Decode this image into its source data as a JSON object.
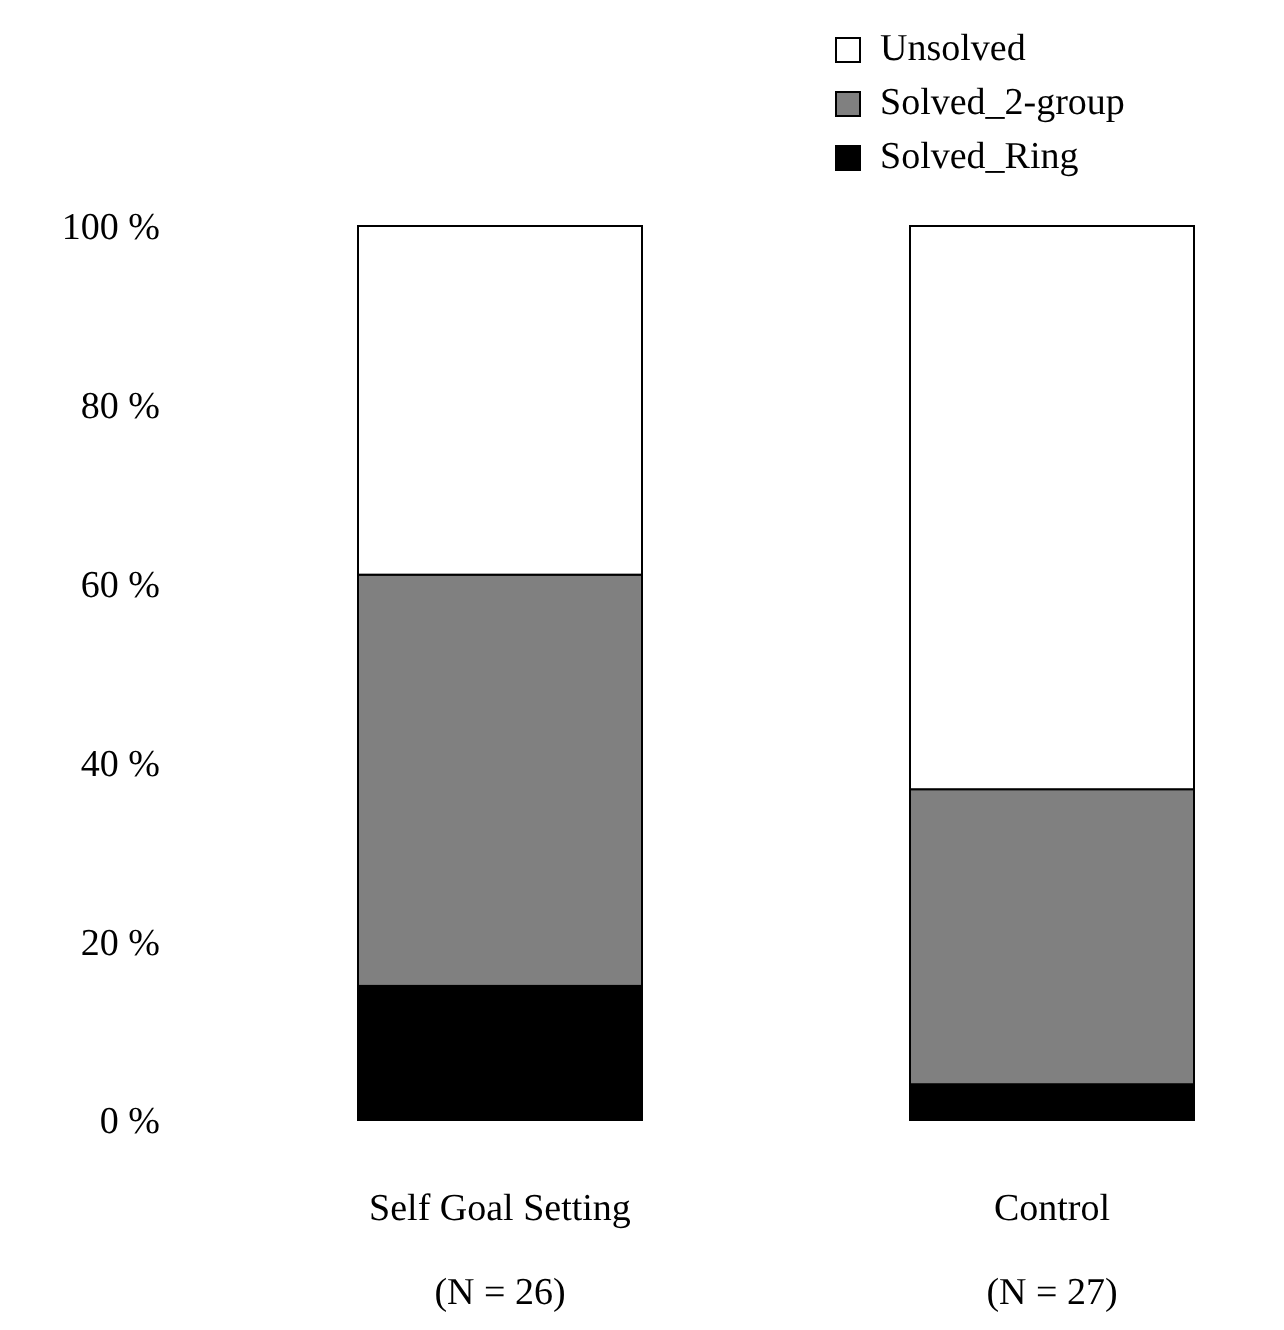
{
  "chart_data": {
    "type": "bar",
    "stacked": true,
    "categories": [
      "Self Goal Setting (N = 26)",
      "Control (N = 27)"
    ],
    "series": [
      {
        "name": "Solved_Ring",
        "color": "#000000",
        "values": [
          15,
          4
        ]
      },
      {
        "name": "Solved_2-group",
        "color": "#808080",
        "values": [
          46,
          33
        ]
      },
      {
        "name": "Unsolved",
        "color": "#ffffff",
        "values": [
          39,
          63
        ]
      }
    ],
    "ylim": [
      0,
      100
    ],
    "yticks": [
      {
        "value": 0,
        "label": "0 %"
      },
      {
        "value": 20,
        "label": "20 %"
      },
      {
        "value": 40,
        "label": "40 %"
      },
      {
        "value": 60,
        "label": "60 %"
      },
      {
        "value": 80,
        "label": "80 %"
      },
      {
        "value": 100,
        "label": "100 %"
      }
    ],
    "grid": false,
    "legend": "top right"
  }
}
